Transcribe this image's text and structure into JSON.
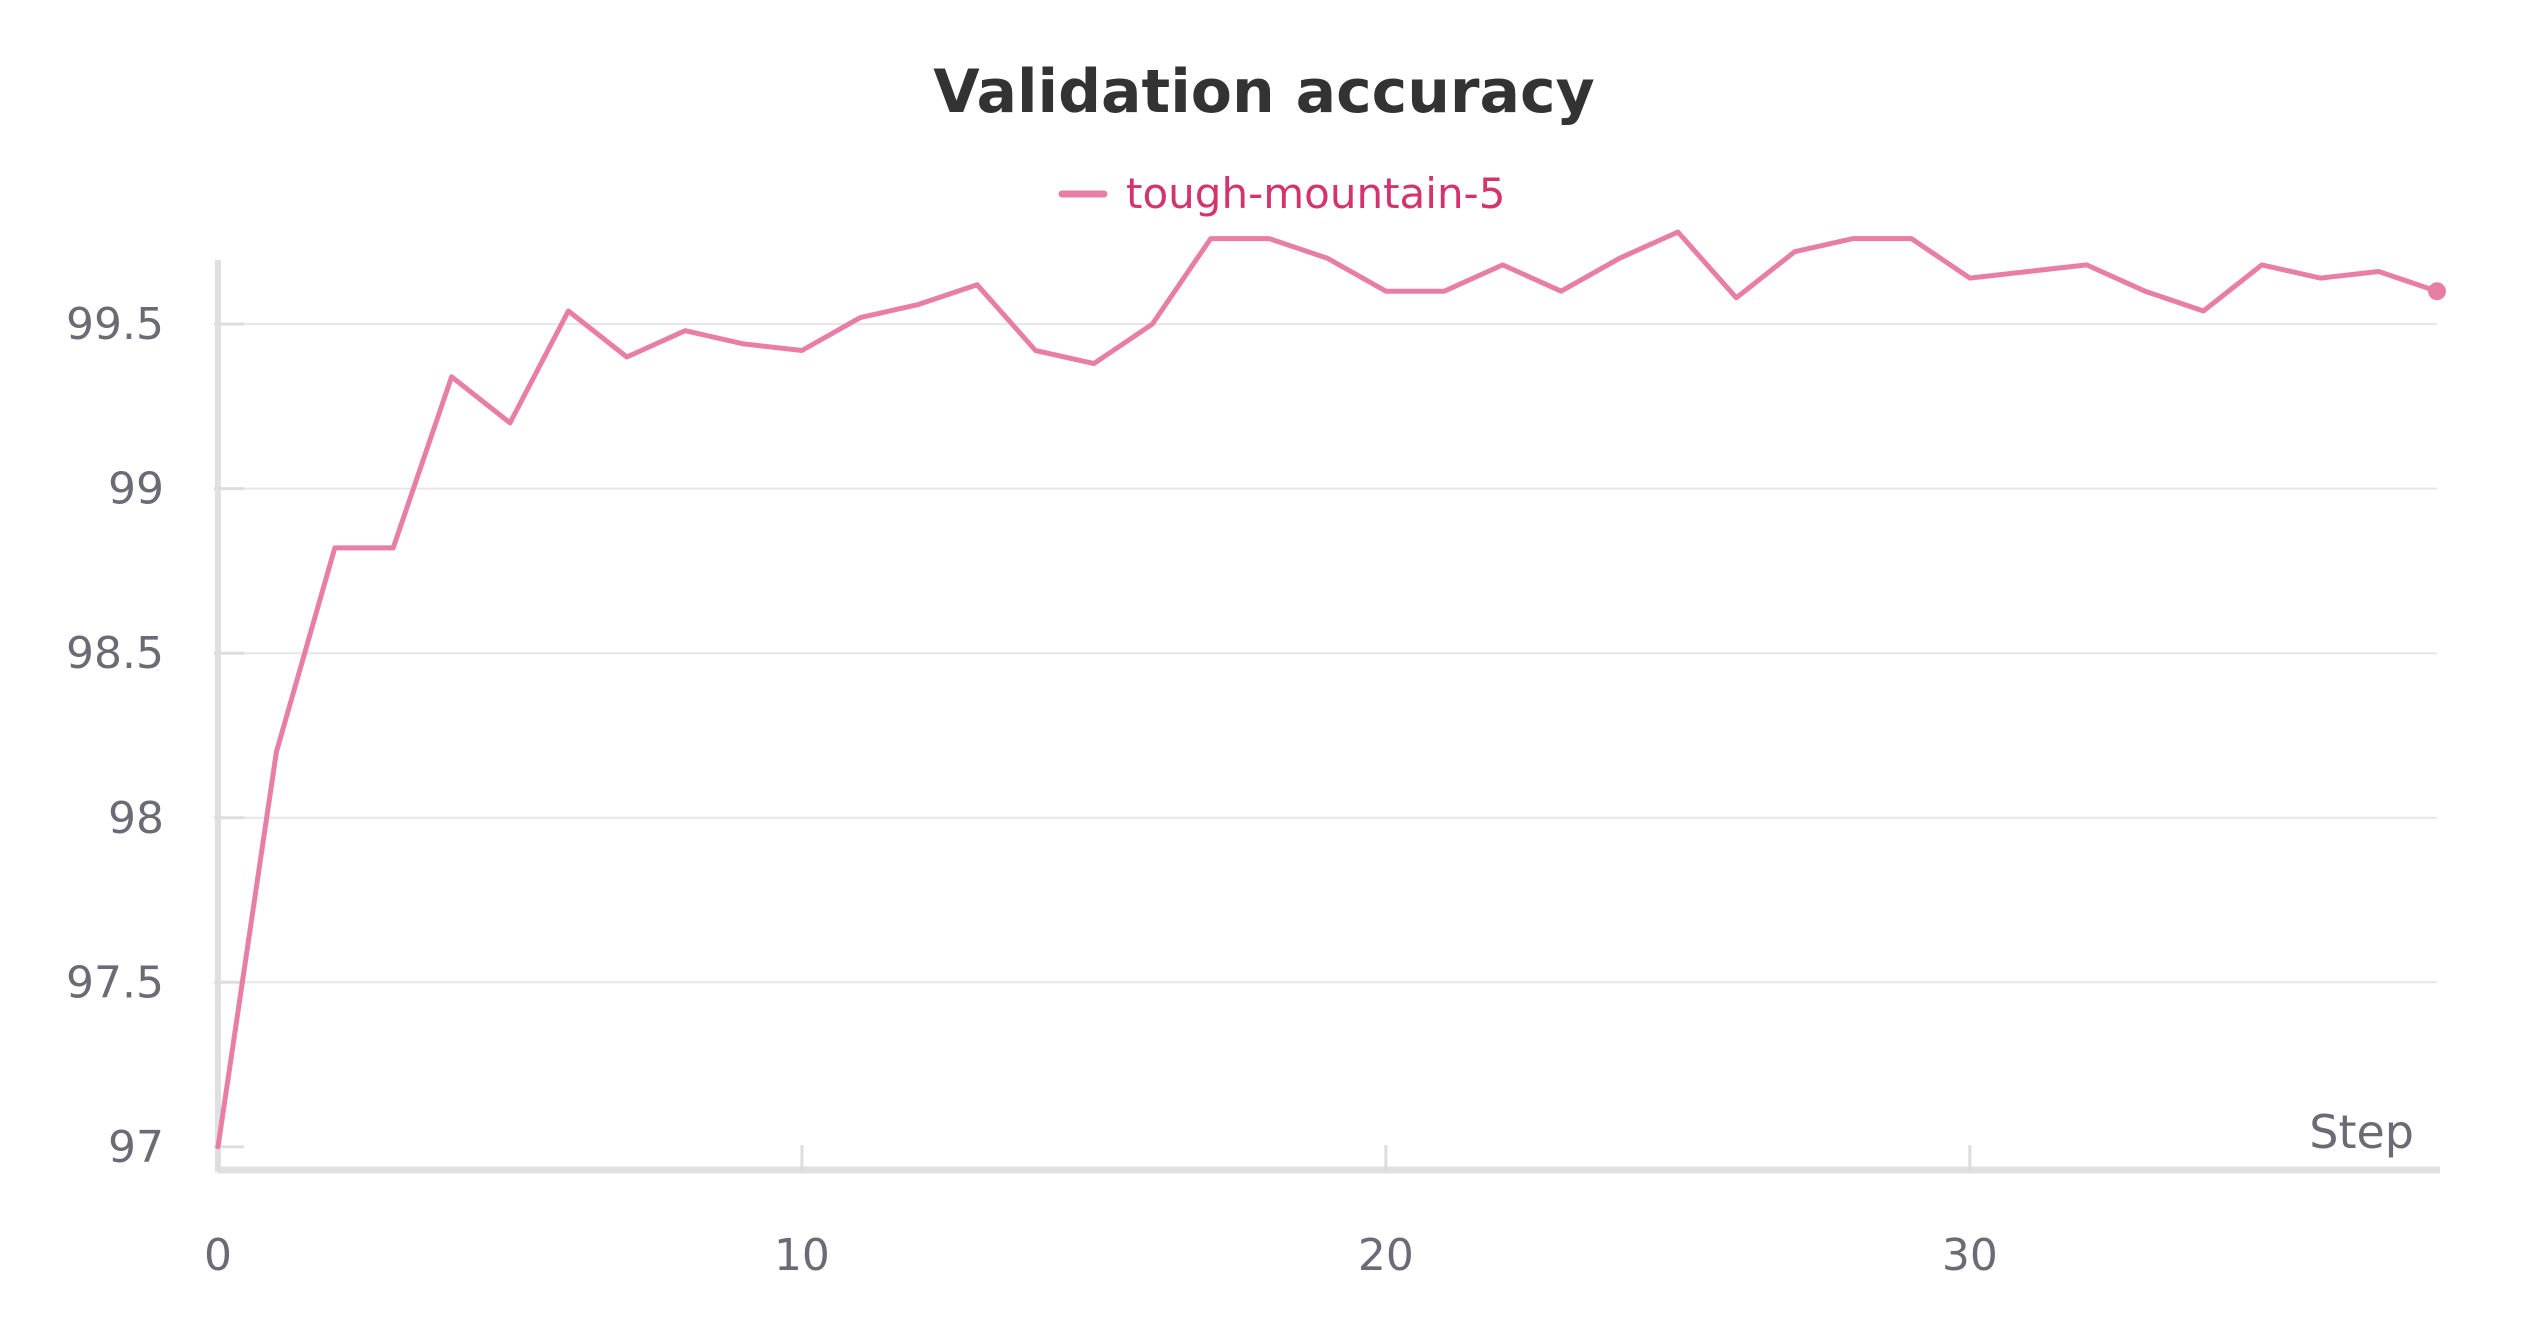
{
  "chart_data": {
    "type": "line",
    "title": "Validation accuracy",
    "xlabel": "Step",
    "ylabel": "",
    "xlim": [
      0,
      38
    ],
    "ylim": [
      96.96,
      99.78
    ],
    "x_ticks": [
      0,
      10,
      20,
      30
    ],
    "y_ticks": [
      97,
      97.5,
      98,
      98.5,
      99,
      99.5
    ],
    "x_tick_labels": [
      "0",
      "10",
      "20",
      "30"
    ],
    "y_tick_labels": [
      "97",
      "97.5",
      "98",
      "98.5",
      "99",
      "99.5"
    ],
    "grid": "horizontal",
    "legend": "top-center",
    "colors": {
      "series": "#e87ea6",
      "legend_text": "#d4336e",
      "title": "#333333",
      "ticks": "#6b6b76",
      "grid": "#e6e6e6",
      "axis": "#e0e0e0"
    },
    "series": [
      {
        "name": "tough-mountain-5",
        "x": [
          0,
          1,
          2,
          3,
          4,
          5,
          6,
          7,
          8,
          9,
          10,
          11,
          12,
          13,
          14,
          15,
          16,
          17,
          18,
          19,
          20,
          21,
          22,
          23,
          24,
          25,
          26,
          27,
          28,
          29,
          30,
          31,
          32,
          33,
          34,
          35,
          36,
          37,
          38
        ],
        "values": [
          97.0,
          98.2,
          98.82,
          98.82,
          99.34,
          99.2,
          99.54,
          99.4,
          99.48,
          99.44,
          99.42,
          99.52,
          99.56,
          99.62,
          99.42,
          99.38,
          99.5,
          99.76,
          99.76,
          99.7,
          99.6,
          99.6,
          99.68,
          99.6,
          99.7,
          99.78,
          99.58,
          99.72,
          99.76,
          99.76,
          99.64,
          99.66,
          99.68,
          99.6,
          99.54,
          99.68,
          99.64,
          99.66,
          99.6
        ]
      }
    ]
  }
}
